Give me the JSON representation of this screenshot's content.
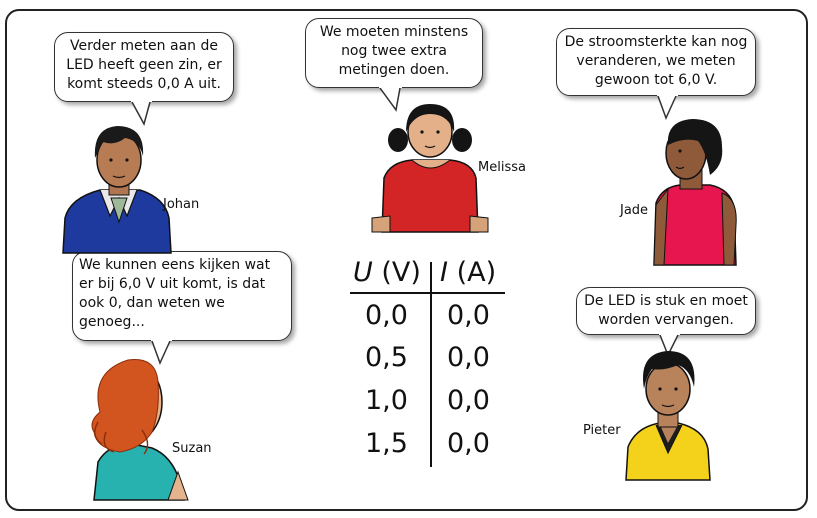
{
  "bubbles": {
    "johan": [
      "Verder meten aan de",
      "LED heeft geen zin, er",
      "komt steeds 0,0 A uit."
    ],
    "melissa": [
      "We moeten minstens",
      "nog twee extra",
      "metingen doen."
    ],
    "jade": [
      "De stroomsterkte kan nog",
      "veranderen, we meten",
      "gewoon tot 6,0 V."
    ],
    "suzan": [
      "We kunnen eens kijken wat",
      "er bij 6,0 V uit komt, is dat",
      "ook 0, dan weten we",
      "genoeg..."
    ],
    "pieter": [
      "De LED is stuk en moet",
      "worden vervangen."
    ]
  },
  "names": {
    "johan": "Johan",
    "melissa": "Melissa",
    "jade": "Jade",
    "suzan": "Suzan",
    "pieter": "Pieter"
  },
  "table": {
    "headers": [
      {
        "symbol": "U",
        "unit": "(V)"
      },
      {
        "symbol": "I",
        "unit": "(A)"
      }
    ],
    "rows": [
      [
        "0,0",
        "0,0"
      ],
      [
        "0,5",
        "0,0"
      ],
      [
        "1,0",
        "0,0"
      ],
      [
        "1,5",
        "0,0"
      ]
    ]
  }
}
